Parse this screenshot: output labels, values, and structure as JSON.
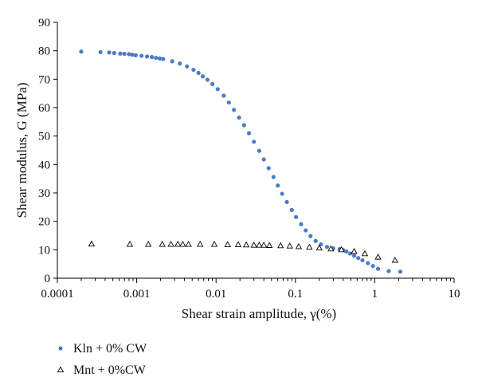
{
  "chart_data": {
    "type": "scatter",
    "title": "",
    "xlabel": "Shear strain amplitude, γ(%)",
    "ylabel": "Shear modulus, G (MPa)",
    "x_scale": "log",
    "xlim": [
      0.0001,
      10
    ],
    "ylim": [
      0,
      90
    ],
    "x_ticks": [
      0.0001,
      0.001,
      0.01,
      0.1,
      1,
      10
    ],
    "x_tick_labels": [
      "0.0001",
      "0.001",
      "0.01",
      "0.1",
      "1",
      "10"
    ],
    "y_ticks": [
      0,
      10,
      20,
      30,
      40,
      50,
      60,
      70,
      80,
      90
    ],
    "y_tick_labels": [
      "0",
      "10",
      "20",
      "30",
      "40",
      "50",
      "60",
      "70",
      "80",
      "90"
    ],
    "grid": false,
    "legend_position": "bottom-left, below plot",
    "series": [
      {
        "name": "Kln + 0% CW",
        "marker": "filled-circle",
        "color": "#4a7cc7",
        "points": [
          [
            0.0002,
            79.7
          ],
          [
            0.00035,
            79.5
          ],
          [
            0.00045,
            79.4
          ],
          [
            0.00052,
            79.2
          ],
          [
            0.00062,
            79.0
          ],
          [
            0.0007,
            78.9
          ],
          [
            0.0008,
            78.8
          ],
          [
            0.00088,
            78.6
          ],
          [
            0.00097,
            78.4
          ],
          [
            0.00115,
            78.2
          ],
          [
            0.00135,
            78.0
          ],
          [
            0.00155,
            77.8
          ],
          [
            0.00175,
            77.5
          ],
          [
            0.00195,
            77.3
          ],
          [
            0.00215,
            77.1
          ],
          [
            0.0028,
            76.3
          ],
          [
            0.0035,
            75.5
          ],
          [
            0.0043,
            74.5
          ],
          [
            0.0052,
            73.3
          ],
          [
            0.006,
            72.2
          ],
          [
            0.0068,
            71.0
          ],
          [
            0.0078,
            69.8
          ],
          [
            0.009,
            68.3
          ],
          [
            0.0105,
            66.5
          ],
          [
            0.0125,
            64.2
          ],
          [
            0.0145,
            61.8
          ],
          [
            0.0168,
            59.2
          ],
          [
            0.0195,
            56.5
          ],
          [
            0.0225,
            53.8
          ],
          [
            0.026,
            51.0
          ],
          [
            0.03,
            48.0
          ],
          [
            0.035,
            44.8
          ],
          [
            0.04,
            41.8
          ],
          [
            0.046,
            38.7
          ],
          [
            0.053,
            35.6
          ],
          [
            0.06,
            32.6
          ],
          [
            0.068,
            29.7
          ],
          [
            0.078,
            26.8
          ],
          [
            0.09,
            24.0
          ],
          [
            0.102,
            21.5
          ],
          [
            0.118,
            19.0
          ],
          [
            0.135,
            16.8
          ],
          [
            0.155,
            14.8
          ],
          [
            0.18,
            13.1
          ],
          [
            0.21,
            11.9
          ],
          [
            0.25,
            11.0
          ],
          [
            0.3,
            10.5
          ],
          [
            0.36,
            10.2
          ],
          [
            0.4,
            9.9
          ],
          [
            0.44,
            9.4
          ],
          [
            0.49,
            8.7
          ],
          [
            0.55,
            7.9
          ],
          [
            0.62,
            7.1
          ],
          [
            0.7,
            6.3
          ],
          [
            0.82,
            5.3
          ],
          [
            0.95,
            4.3
          ],
          [
            1.1,
            3.3
          ],
          [
            1.5,
            2.5
          ],
          [
            2.1,
            2.3
          ]
        ]
      },
      {
        "name": "Mnt + 0%CW",
        "marker": "open-triangle",
        "color": "#000000",
        "points": [
          [
            0.00027,
            12.0
          ],
          [
            0.00082,
            11.9
          ],
          [
            0.0014,
            11.9
          ],
          [
            0.0021,
            11.9
          ],
          [
            0.0027,
            11.9
          ],
          [
            0.0033,
            11.9
          ],
          [
            0.0038,
            11.9
          ],
          [
            0.0045,
            11.9
          ],
          [
            0.0063,
            11.9
          ],
          [
            0.0095,
            11.9
          ],
          [
            0.014,
            11.8
          ],
          [
            0.019,
            11.8
          ],
          [
            0.024,
            11.7
          ],
          [
            0.03,
            11.6
          ],
          [
            0.035,
            11.6
          ],
          [
            0.04,
            11.6
          ],
          [
            0.047,
            11.5
          ],
          [
            0.065,
            11.4
          ],
          [
            0.085,
            11.3
          ],
          [
            0.11,
            11.1
          ],
          [
            0.15,
            10.9
          ],
          [
            0.2,
            10.6
          ],
          [
            0.28,
            10.3
          ],
          [
            0.38,
            10.0
          ],
          [
            0.55,
            9.4
          ],
          [
            0.75,
            8.6
          ],
          [
            1.1,
            7.4
          ],
          [
            1.8,
            6.3
          ]
        ]
      }
    ]
  }
}
